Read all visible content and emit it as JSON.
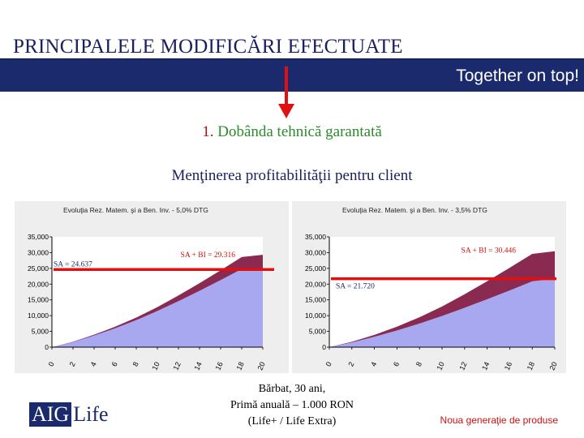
{
  "header": {
    "title": "PRINCIPALELE MODIFICĂRI EFECTUATE",
    "tagline": "Together on top!"
  },
  "section": {
    "number": "1.",
    "heading": "Dobânda tehnică garantată",
    "subheading": "Menţinerea profitabilităţii pentru client"
  },
  "footer": {
    "line1": "Bărbat, 30 ani,",
    "line2": "Primă anuală – 1.000 RON",
    "line3": "(Life+ / Life Extra)",
    "brand_aig": "AIG",
    "brand_life": "Life",
    "new_generation": "Noua generaţie de produse"
  },
  "colors": {
    "navy": "#1a2a6c",
    "red": "#e01010",
    "sa_area": "#a8a8f0",
    "bi_area": "#8b2a50"
  },
  "chart_data": [
    {
      "type": "area",
      "title": "Evoluţia Rez. Matem. şi a Ben. Inv. - 5,0% DTG",
      "x": [
        0,
        2,
        4,
        6,
        8,
        10,
        12,
        14,
        16,
        18,
        20
      ],
      "x_ticks": [
        "0",
        "2",
        "4",
        "6",
        "8",
        "10",
        "12",
        "14",
        "16",
        "18",
        "20"
      ],
      "y_ticks": [
        "0",
        "5,000",
        "10,000",
        "15,000",
        "20,000",
        "25,000",
        "30,000",
        "35,000"
      ],
      "ylim": [
        0,
        35000
      ],
      "series": [
        {
          "values": [
            0,
            1600,
            3700,
            6000,
            8600,
            11500,
            14600,
            17900,
            21300,
            24800,
            24637
          ]
        },
        {
          "values": [
            0,
            1700,
            3950,
            6500,
            9400,
            12700,
            16400,
            20300,
            24400,
            28600,
            29316
          ]
        }
      ],
      "annotations": [
        {
          "text": "SA + BI = 29.316",
          "value": 29316
        },
        {
          "text": "SA = 24.637",
          "value": 24637
        }
      ]
    },
    {
      "type": "area",
      "title": "Evoluţia Rez. Matem. şi a Ben. Inv. - 3,5% DTG",
      "x": [
        0,
        2,
        4,
        6,
        8,
        10,
        12,
        14,
        16,
        18,
        20
      ],
      "x_ticks": [
        "0",
        "2",
        "4",
        "6",
        "8",
        "10",
        "12",
        "14",
        "16",
        "18",
        "20"
      ],
      "y_ticks": [
        "0",
        "5,000",
        "10,000",
        "15,000",
        "20,000",
        "25,000",
        "30,000",
        "35,000"
      ],
      "ylim": [
        0,
        35000
      ],
      "series": [
        {
          "values": [
            0,
            1500,
            3300,
            5300,
            7500,
            9900,
            12500,
            15200,
            18000,
            20900,
            21720
          ]
        },
        {
          "values": [
            0,
            1700,
            3900,
            6500,
            9500,
            12900,
            16800,
            20900,
            25200,
            29600,
            30446
          ]
        }
      ],
      "annotations": [
        {
          "text": "SA + BI = 30.446",
          "value": 30446
        },
        {
          "text": "SA = 21.720",
          "value": 21720
        }
      ]
    }
  ]
}
